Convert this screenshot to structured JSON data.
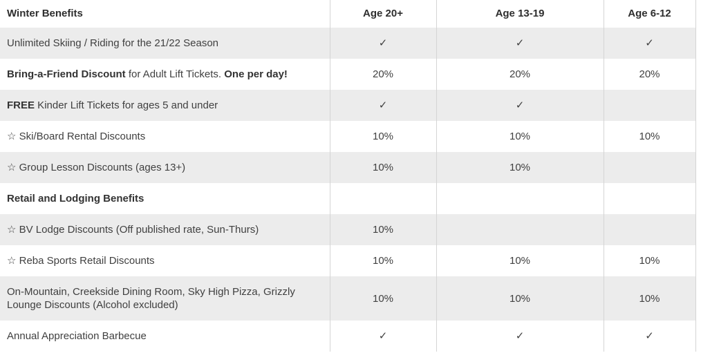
{
  "page": {
    "background": "#ffffff"
  },
  "table": {
    "header": {
      "benefit_label": "Winter Benefits",
      "age_columns": [
        "Age 20+",
        "Age 13-19",
        "Age 6-12"
      ]
    },
    "icons": {
      "check": "✓",
      "star": "☆"
    },
    "colors": {
      "shaded_row_bg": "#ececec",
      "row_bg": "#ffffff",
      "border": "#d4d4d4",
      "text": "#404040",
      "heading_text": "#2e2e2e"
    },
    "rows": [
      {
        "shaded": true,
        "star": false,
        "label_parts": [
          {
            "text": "Unlimited Skiing / Riding for the 21/22 Season",
            "bold": false
          }
        ],
        "values": [
          "✓",
          "✓",
          "✓"
        ]
      },
      {
        "shaded": false,
        "star": false,
        "label_parts": [
          {
            "text": "Bring-a-Friend Discount",
            "bold": true
          },
          {
            "text": " for Adult Lift Tickets. ",
            "bold": false
          },
          {
            "text": "One per day!",
            "bold": true
          }
        ],
        "values": [
          "20%",
          "20%",
          "20%"
        ]
      },
      {
        "shaded": true,
        "star": false,
        "label_parts": [
          {
            "text": "FREE",
            "bold": true
          },
          {
            "text": " Kinder Lift Tickets for ages 5 and under",
            "bold": false
          }
        ],
        "values": [
          "✓",
          "✓",
          ""
        ]
      },
      {
        "shaded": false,
        "star": true,
        "label_parts": [
          {
            "text": "Ski/Board Rental Discounts",
            "bold": false
          }
        ],
        "values": [
          "10%",
          "10%",
          "10%"
        ]
      },
      {
        "shaded": true,
        "star": true,
        "label_parts": [
          {
            "text": "Group Lesson Discounts (ages 13+)",
            "bold": false
          }
        ],
        "values": [
          "10%",
          "10%",
          ""
        ]
      },
      {
        "shaded": false,
        "star": false,
        "label_parts": [
          {
            "text": "Retail and Lodging Benefits",
            "bold": true
          }
        ],
        "values": [
          "",
          "",
          ""
        ]
      },
      {
        "shaded": true,
        "star": true,
        "label_parts": [
          {
            "text": "BV Lodge Discounts (Off published rate, Sun-Thurs)",
            "bold": false
          }
        ],
        "values": [
          "10%",
          "",
          ""
        ]
      },
      {
        "shaded": false,
        "star": true,
        "label_parts": [
          {
            "text": "Reba Sports Retail Discounts",
            "bold": false
          }
        ],
        "values": [
          "10%",
          "10%",
          "10%"
        ]
      },
      {
        "shaded": true,
        "star": false,
        "label_parts": [
          {
            "text": "On-Mountain, Creekside Dining Room, Sky High Pizza, Grizzly Lounge Discounts (Alcohol excluded)",
            "bold": false
          }
        ],
        "values": [
          "10%",
          "10%",
          "10%"
        ]
      },
      {
        "shaded": false,
        "star": false,
        "label_parts": [
          {
            "text": "Annual Appreciation Barbecue",
            "bold": false
          }
        ],
        "values": [
          "✓",
          "✓",
          "✓"
        ]
      }
    ]
  }
}
